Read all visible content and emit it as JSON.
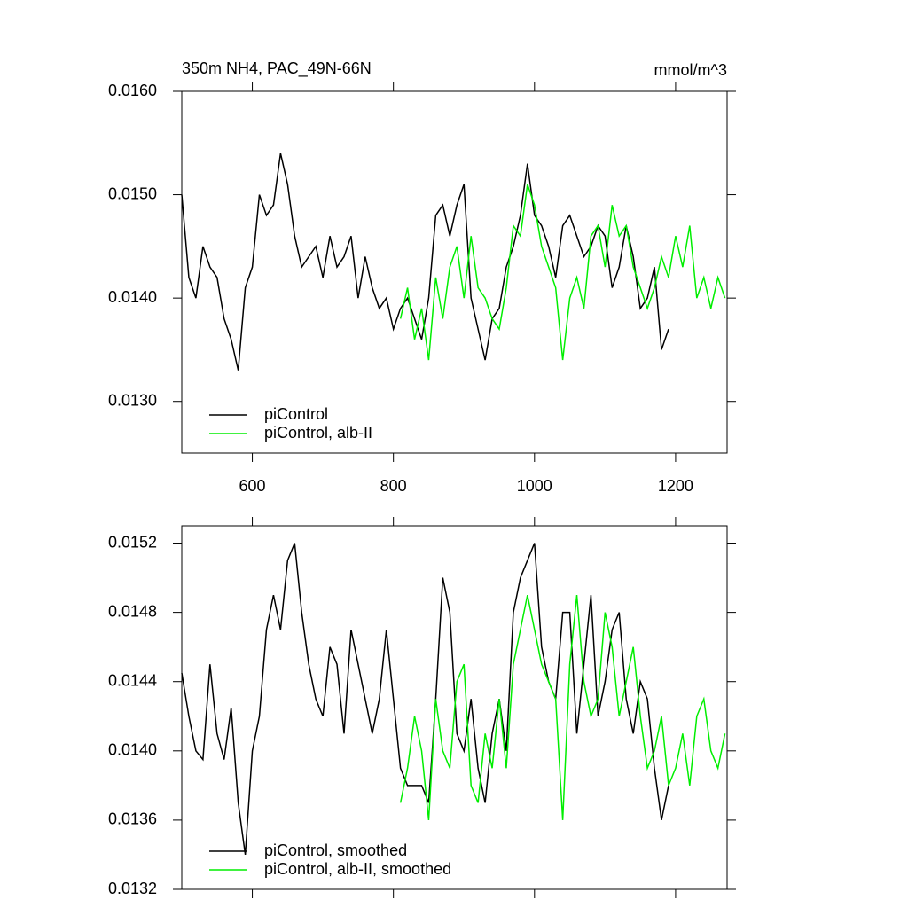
{
  "chart_data": [
    {
      "type": "line",
      "title": "350m NH4, PAC_49N-66N",
      "units": "mmol/m^3",
      "xlim": [
        500,
        1273
      ],
      "xticks": [
        600,
        800,
        1000,
        1200
      ],
      "x_tick_labels": true,
      "ylim": [
        0.0125,
        0.016
      ],
      "yticks": [
        {
          "value": 0.013,
          "label": "0.0130"
        },
        {
          "value": 0.014,
          "label": "0.0140"
        },
        {
          "value": 0.015,
          "label": "0.0150"
        },
        {
          "value": 0.016,
          "label": "0.0160"
        }
      ],
      "legend": "lower left",
      "series": [
        {
          "name": "piControl",
          "color": "#000000",
          "x": [
            500,
            510,
            520,
            530,
            540,
            550,
            560,
            570,
            580,
            590,
            600,
            610,
            620,
            630,
            640,
            650,
            660,
            670,
            680,
            690,
            700,
            710,
            720,
            730,
            740,
            750,
            760,
            770,
            780,
            790,
            800,
            810,
            820,
            830,
            840,
            850,
            860,
            870,
            880,
            890,
            900,
            910,
            920,
            930,
            940,
            950,
            960,
            970,
            980,
            990,
            1000,
            1010,
            1020,
            1030,
            1040,
            1050,
            1060,
            1070,
            1080,
            1090,
            1100,
            1110,
            1120,
            1130,
            1140,
            1150,
            1160,
            1170,
            1180,
            1190
          ],
          "values": [
            0.015,
            0.0142,
            0.014,
            0.0145,
            0.0143,
            0.0142,
            0.0138,
            0.0136,
            0.0133,
            0.0141,
            0.0143,
            0.015,
            0.0148,
            0.0149,
            0.0154,
            0.0151,
            0.0146,
            0.0143,
            0.0144,
            0.0145,
            0.0142,
            0.0146,
            0.0143,
            0.0144,
            0.0146,
            0.014,
            0.0144,
            0.0141,
            0.0139,
            0.014,
            0.0137,
            0.0139,
            0.014,
            0.0138,
            0.0136,
            0.014,
            0.0148,
            0.0149,
            0.0146,
            0.0149,
            0.0151,
            0.014,
            0.0137,
            0.0134,
            0.0138,
            0.0139,
            0.0143,
            0.0145,
            0.0148,
            0.0153,
            0.0148,
            0.0147,
            0.0145,
            0.0142,
            0.0147,
            0.0148,
            0.0146,
            0.0144,
            0.0145,
            0.0147,
            0.0146,
            0.0141,
            0.0143,
            0.0147,
            0.0144,
            0.0139,
            0.014,
            0.0143,
            0.0135,
            0.0137
          ]
        },
        {
          "name": "piControl, alb-II",
          "color": "#00ee00",
          "x": [
            810,
            820,
            830,
            840,
            850,
            860,
            870,
            880,
            890,
            900,
            910,
            920,
            930,
            940,
            950,
            960,
            970,
            980,
            990,
            1000,
            1010,
            1020,
            1030,
            1040,
            1050,
            1060,
            1070,
            1080,
            1090,
            1100,
            1110,
            1120,
            1130,
            1140,
            1150,
            1160,
            1170,
            1180,
            1190,
            1200,
            1210,
            1220,
            1230,
            1240,
            1250,
            1260,
            1270
          ],
          "values": [
            0.0138,
            0.0141,
            0.0136,
            0.0139,
            0.0134,
            0.0142,
            0.0138,
            0.0143,
            0.0145,
            0.014,
            0.0146,
            0.0141,
            0.014,
            0.0138,
            0.0137,
            0.0141,
            0.0147,
            0.0146,
            0.0151,
            0.0149,
            0.0145,
            0.0143,
            0.0141,
            0.0134,
            0.014,
            0.0142,
            0.0139,
            0.0146,
            0.0147,
            0.0143,
            0.0149,
            0.0146,
            0.0147,
            0.0143,
            0.0141,
            0.0139,
            0.0141,
            0.0144,
            0.0142,
            0.0146,
            0.0143,
            0.0147,
            0.014,
            0.0142,
            0.0139,
            0.0142,
            0.014
          ]
        }
      ]
    },
    {
      "type": "line",
      "xlim": [
        500,
        1273
      ],
      "xticks": [
        600,
        800,
        1000,
        1200
      ],
      "x_tick_labels": false,
      "ylim": [
        0.0132,
        0.0153
      ],
      "yticks": [
        {
          "value": 0.0132,
          "label": "0.0132"
        },
        {
          "value": 0.0136,
          "label": "0.0136"
        },
        {
          "value": 0.014,
          "label": "0.0140"
        },
        {
          "value": 0.0144,
          "label": "0.0144"
        },
        {
          "value": 0.0148,
          "label": "0.0148"
        },
        {
          "value": 0.0152,
          "label": "0.0152"
        }
      ],
      "legend": "lower left",
      "series": [
        {
          "name": "piControl, smoothed",
          "color": "#000000",
          "x": [
            500,
            510,
            520,
            530,
            540,
            550,
            560,
            570,
            580,
            590,
            600,
            610,
            620,
            630,
            640,
            650,
            660,
            670,
            680,
            690,
            700,
            710,
            720,
            730,
            740,
            750,
            760,
            770,
            780,
            790,
            800,
            810,
            820,
            830,
            840,
            850,
            860,
            870,
            880,
            890,
            900,
            910,
            920,
            930,
            940,
            950,
            960,
            970,
            980,
            990,
            1000,
            1010,
            1020,
            1030,
            1040,
            1050,
            1060,
            1070,
            1080,
            1090,
            1100,
            1110,
            1120,
            1130,
            1140,
            1150,
            1160,
            1170,
            1180,
            1190
          ],
          "values": [
            0.01445,
            0.0142,
            0.014,
            0.01395,
            0.0145,
            0.0141,
            0.01395,
            0.01425,
            0.0137,
            0.0134,
            0.014,
            0.0142,
            0.0147,
            0.0149,
            0.0147,
            0.0151,
            0.0152,
            0.0148,
            0.0145,
            0.0143,
            0.0142,
            0.0146,
            0.0145,
            0.0141,
            0.0147,
            0.0145,
            0.0143,
            0.0141,
            0.0143,
            0.0147,
            0.0143,
            0.0139,
            0.0138,
            0.0138,
            0.0138,
            0.0137,
            0.0143,
            0.015,
            0.0148,
            0.0141,
            0.014,
            0.0143,
            0.0139,
            0.0137,
            0.0141,
            0.0143,
            0.014,
            0.0148,
            0.015,
            0.0151,
            0.0152,
            0.0146,
            0.0144,
            0.0143,
            0.0148,
            0.0148,
            0.0141,
            0.0145,
            0.0149,
            0.0142,
            0.0144,
            0.0147,
            0.0148,
            0.0143,
            0.0141,
            0.0144,
            0.0143,
            0.0139,
            0.0136,
            0.0138
          ]
        },
        {
          "name": "piControl, alb-II, smoothed",
          "color": "#00ee00",
          "x": [
            810,
            820,
            830,
            840,
            850,
            860,
            870,
            880,
            890,
            900,
            910,
            920,
            930,
            940,
            950,
            960,
            970,
            980,
            990,
            1000,
            1010,
            1020,
            1030,
            1040,
            1050,
            1060,
            1070,
            1080,
            1090,
            1100,
            1110,
            1120,
            1130,
            1140,
            1150,
            1160,
            1170,
            1180,
            1190,
            1200,
            1210,
            1220,
            1230,
            1240,
            1250,
            1260,
            1270
          ],
          "values": [
            0.0137,
            0.0139,
            0.0142,
            0.014,
            0.0136,
            0.0143,
            0.014,
            0.0139,
            0.0144,
            0.0145,
            0.0138,
            0.0137,
            0.0141,
            0.0139,
            0.0143,
            0.0139,
            0.0145,
            0.0147,
            0.0149,
            0.0147,
            0.0145,
            0.0144,
            0.0143,
            0.0136,
            0.0145,
            0.0149,
            0.0144,
            0.0142,
            0.0143,
            0.0148,
            0.0146,
            0.0142,
            0.0144,
            0.0146,
            0.0142,
            0.0139,
            0.014,
            0.0142,
            0.0138,
            0.0139,
            0.0141,
            0.0138,
            0.0142,
            0.0143,
            0.014,
            0.0139,
            0.0141
          ]
        }
      ]
    }
  ]
}
